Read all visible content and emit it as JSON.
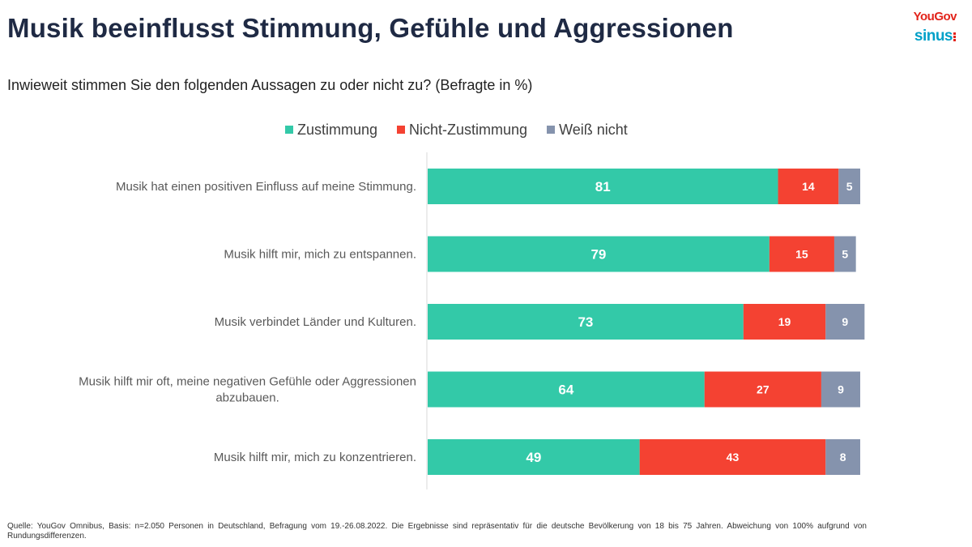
{
  "header": {
    "title": "Musik beeinflusst Stimmung, Gefühle und Aggressionen",
    "subtitle": "Inwieweit stimmen Sie den folgenden Aussagen zu oder nicht zu? (Befragte in %)"
  },
  "logos": {
    "yougov": "YouGov",
    "sinus": "sinus"
  },
  "colors": {
    "zustimmung": "#33c9a8",
    "nicht_zustimmung": "#f44232",
    "weiss_nicht": "#8593ad"
  },
  "chart_data": {
    "type": "bar",
    "orientation": "horizontal",
    "stacked": true,
    "title": "Musik beeinflusst Stimmung, Gefühle und Aggressionen",
    "categories": [
      "Musik hat einen positiven Einfluss auf meine Stimmung.",
      "Musik hilft mir, mich zu entspannen.",
      "Musik verbindet Länder und Kulturen.",
      "Musik hilft mir oft, meine negativen Gefühle oder Aggressionen abzubauen.",
      "Musik hilft mir, mich zu konzentrieren."
    ],
    "series": [
      {
        "name": "Zustimmung",
        "values": [
          81,
          79,
          73,
          64,
          49
        ]
      },
      {
        "name": "Nicht-Zustimmung",
        "values": [
          14,
          15,
          19,
          27,
          43
        ]
      },
      {
        "name": "Weiß nicht",
        "values": [
          5,
          5,
          9,
          9,
          8
        ]
      }
    ],
    "xlim": [
      0,
      100
    ],
    "legend_position": "top"
  },
  "footnote": "Quelle: YouGov Omnibus, Basis: n=2.050 Personen in Deutschland, Befragung vom 19.-26.08.2022. Die Ergebnisse sind repräsentativ für die deutsche Bevölkerung von 18 bis 75 Jahren. Abweichung von 100% aufgrund von Rundungsdifferenzen."
}
